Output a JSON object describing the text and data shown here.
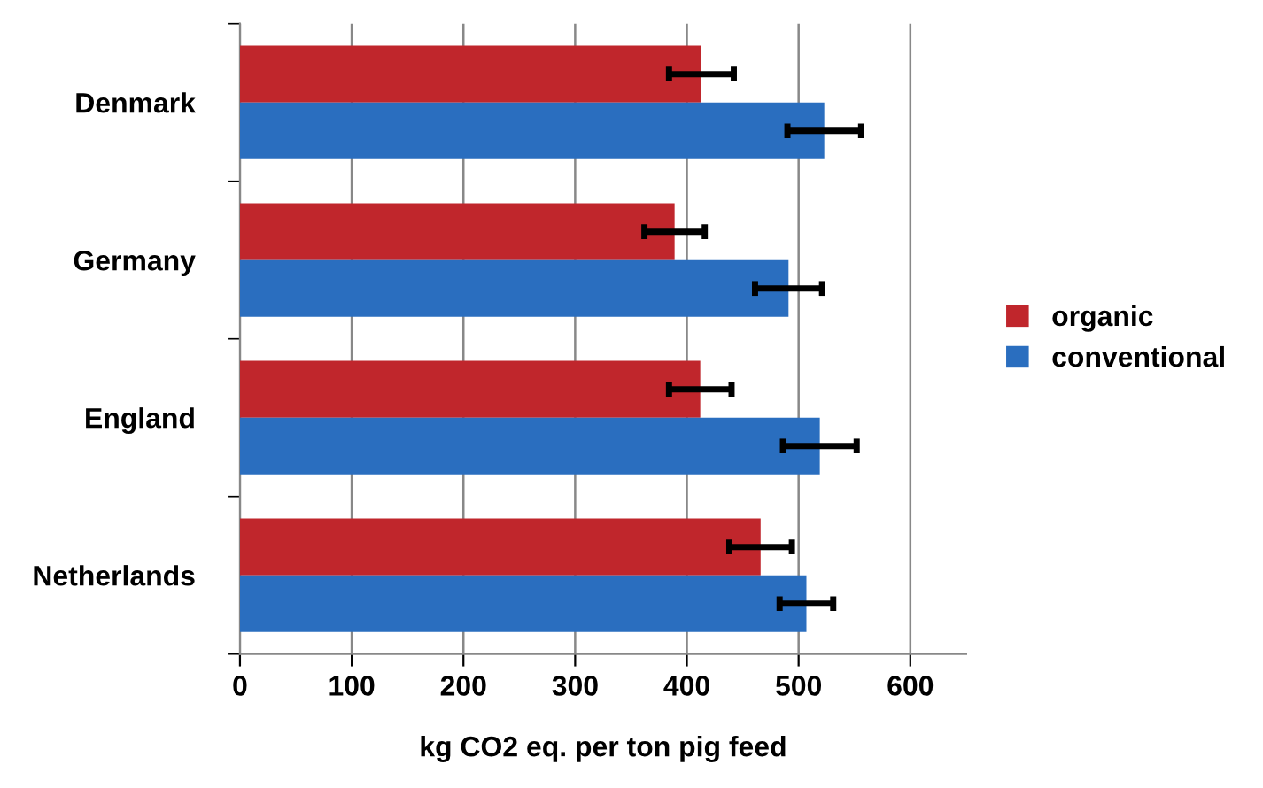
{
  "chart_data": {
    "type": "bar",
    "orientation": "horizontal",
    "categories": [
      "Denmark",
      "Germany",
      "England",
      "Netherlands"
    ],
    "series": [
      {
        "name": "organic",
        "color": "#c0262c",
        "values": [
          413,
          389,
          412,
          466
        ],
        "errors": [
          29,
          27,
          28,
          28
        ]
      },
      {
        "name": "conventional",
        "color": "#2a6ebf",
        "values": [
          523,
          491,
          519,
          507
        ],
        "errors": [
          33,
          30,
          33,
          24
        ]
      }
    ],
    "xlabel": "kg CO2 eq. per ton pig feed",
    "xlim": [
      0,
      650
    ],
    "xticks": [
      0,
      100,
      200,
      300,
      400,
      500,
      600
    ],
    "grid": "x",
    "legend": "right"
  }
}
